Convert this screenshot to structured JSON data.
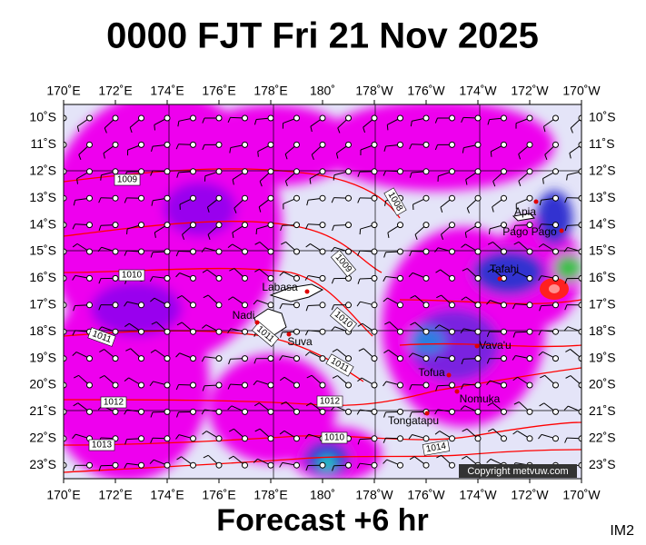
{
  "header": {
    "title": "0000 FJT Fri 21 Nov 2025"
  },
  "axes": {
    "longitudes": [
      "170˚E",
      "172˚E",
      "174˚E",
      "176˚E",
      "178˚E",
      "180˚",
      "178˚W",
      "176˚W",
      "174˚W",
      "172˚W",
      "170˚W"
    ],
    "latitudes": [
      "10˚S",
      "11˚S",
      "12˚S",
      "13˚S",
      "14˚S",
      "15˚S",
      "16˚S",
      "17˚S",
      "18˚S",
      "19˚S",
      "20˚S",
      "21˚S",
      "22˚S",
      "23˚S"
    ]
  },
  "places": [
    "Apia",
    "Pago Pago",
    "Tafahi",
    "Labasa",
    "Nadi",
    "Suva",
    "Vava'u",
    "Tofua",
    "Nomuka",
    "Tongatapu"
  ],
  "isobar_labels": [
    "1009",
    "1008",
    "1009",
    "1010",
    "1010",
    "1011",
    "1011",
    "1011",
    "1012",
    "1012",
    "1013",
    "1014",
    "1010"
  ],
  "copyright": "Copyright metvuw.com",
  "footer": {
    "forecast": "Forecast +6 hr",
    "id": "IM2"
  }
}
